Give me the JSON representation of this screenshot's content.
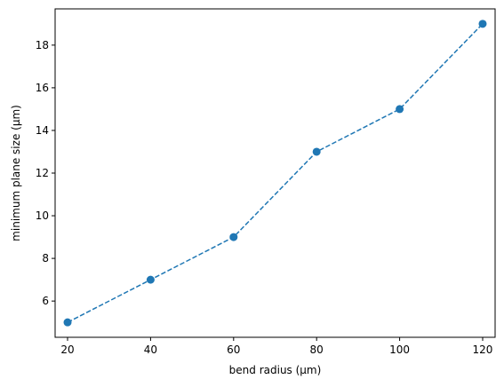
{
  "chart_data": {
    "type": "line",
    "x": [
      20,
      40,
      60,
      80,
      100,
      120
    ],
    "series": [
      {
        "values": [
          5,
          7,
          9,
          13,
          15,
          19
        ]
      }
    ],
    "title": "",
    "xlabel": "bend radius (μm)",
    "ylabel": "minimum plane size (μm)",
    "xlim": [
      17,
      123
    ],
    "ylim": [
      4.3,
      19.7
    ],
    "xticks": [
      20,
      40,
      60,
      80,
      100,
      120
    ],
    "yticks": [
      6,
      8,
      10,
      12,
      14,
      16,
      18
    ],
    "line_style": "dashed",
    "marker": "circle",
    "grid": false,
    "legend": "none",
    "colors": {
      "series": "#1f77b4",
      "axes": "#000000",
      "background": "#ffffff"
    }
  }
}
